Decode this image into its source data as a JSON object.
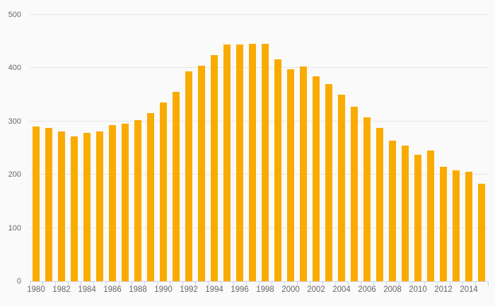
{
  "chart_data": {
    "type": "bar",
    "title": "",
    "xlabel": "",
    "ylabel": "",
    "categories": [
      "1980",
      "1981",
      "1982",
      "1983",
      "1984",
      "1985",
      "1986",
      "1987",
      "1988",
      "1989",
      "1990",
      "1991",
      "1992",
      "1993",
      "1994",
      "1995",
      "1996",
      "1997",
      "1998",
      "1999",
      "2000",
      "2001",
      "2002",
      "2003",
      "2004",
      "2005",
      "2006",
      "2007",
      "2008",
      "2009",
      "2010",
      "2011",
      "2012",
      "2013",
      "2014",
      "2015"
    ],
    "values": [
      291,
      288,
      281,
      272,
      278,
      281,
      293,
      296,
      302,
      316,
      336,
      356,
      394,
      405,
      425,
      444,
      444,
      446,
      446,
      417,
      398,
      403,
      384,
      370,
      350,
      327,
      308,
      288,
      264,
      254,
      238,
      245,
      215,
      208,
      205,
      183
    ],
    "ylim": [
      0,
      500
    ],
    "yticks": [
      0,
      100,
      200,
      300,
      400,
      500
    ],
    "x_label_interval": 2,
    "grid": true,
    "legend_position": "none",
    "colors": {
      "bar": "#faab00",
      "background": "#fafafa",
      "gridline": "#e6e6e6",
      "axis_line": "#ccd6eb",
      "label_text": "#666666"
    }
  }
}
